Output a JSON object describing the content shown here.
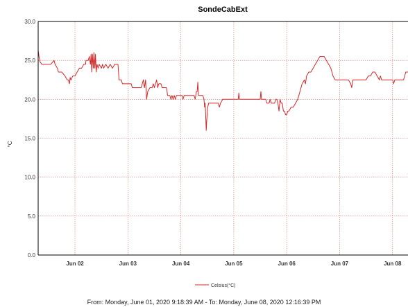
{
  "chart_data": {
    "type": "line",
    "title": "SondeCabExt",
    "ylabel": "°C",
    "xlabel": "",
    "ylim": [
      0,
      30
    ],
    "yticks": [
      "0.0",
      "5.0",
      "10.0",
      "15.0",
      "20.0",
      "25.0",
      "30.0"
    ],
    "xlim_hours": [
      7.31,
      175.0
    ],
    "xticks": [
      {
        "label": "Jun 02",
        "hour": 24
      },
      {
        "label": "Jun 03",
        "hour": 48
      },
      {
        "label": "Jun 04",
        "hour": 72
      },
      {
        "label": "Jun 05",
        "hour": 96
      },
      {
        "label": "Jun 06",
        "hour": 120
      },
      {
        "label": "Jun 07",
        "hour": 144
      },
      {
        "label": "Jun 08",
        "hour": 168
      }
    ],
    "grid": true,
    "legend_position": "bottom-center",
    "series": [
      {
        "name": "Celsius(°C)",
        "color": "#d62728",
        "points": [
          [
            7.3,
            26.3
          ],
          [
            7.7,
            25.5
          ],
          [
            8.2,
            24.8
          ],
          [
            9.0,
            24.5
          ],
          [
            11.0,
            24.5
          ],
          [
            12.0,
            24.5
          ],
          [
            13.0,
            24.5
          ],
          [
            14.5,
            25.0
          ],
          [
            15.0,
            24.5
          ],
          [
            16.0,
            24.0
          ],
          [
            16.5,
            23.5
          ],
          [
            18.0,
            23.5
          ],
          [
            19.5,
            23.0
          ],
          [
            20.5,
            22.5
          ],
          [
            21.0,
            22.5
          ],
          [
            21.5,
            22.0
          ],
          [
            21.8,
            22.8
          ],
          [
            22.2,
            22.5
          ],
          [
            23.0,
            23.0
          ],
          [
            24.0,
            23.0
          ],
          [
            25.0,
            23.5
          ],
          [
            26.0,
            24.0
          ],
          [
            27.0,
            24.0
          ],
          [
            28.0,
            24.5
          ],
          [
            28.8,
            24.5
          ],
          [
            29.0,
            25.0
          ],
          [
            30.0,
            25.0
          ],
          [
            30.5,
            25.5
          ],
          [
            31.0,
            24.5
          ],
          [
            31.3,
            25.8
          ],
          [
            31.6,
            23.5
          ],
          [
            31.9,
            25.8
          ],
          [
            32.3,
            24.0
          ],
          [
            32.6,
            26.0
          ],
          [
            33.0,
            24.0
          ],
          [
            33.3,
            25.8
          ],
          [
            33.6,
            23.5
          ],
          [
            34.0,
            24.5
          ],
          [
            34.5,
            24.0
          ],
          [
            35.0,
            24.5
          ],
          [
            36.0,
            24.0
          ],
          [
            36.5,
            24.5
          ],
          [
            37.0,
            24.0
          ],
          [
            38.0,
            24.5
          ],
          [
            39.0,
            24.0
          ],
          [
            40.0,
            24.5
          ],
          [
            41.0,
            24.0
          ],
          [
            42.0,
            24.5
          ],
          [
            43.5,
            24.5
          ],
          [
            44.0,
            22.5
          ],
          [
            45.0,
            22.5
          ],
          [
            45.5,
            22.0
          ],
          [
            48.0,
            22.0
          ],
          [
            49.5,
            22.0
          ],
          [
            50.0,
            21.5
          ],
          [
            53.0,
            21.5
          ],
          [
            54.0,
            21.5
          ],
          [
            54.5,
            22.0
          ],
          [
            55.0,
            22.5
          ],
          [
            55.5,
            21.5
          ],
          [
            56.0,
            22.5
          ],
          [
            56.5,
            20.0
          ],
          [
            57.0,
            21.0
          ],
          [
            58.0,
            21.5
          ],
          [
            59.0,
            21.5
          ],
          [
            59.5,
            22.0
          ],
          [
            60.0,
            21.5
          ],
          [
            61.0,
            22.5
          ],
          [
            61.5,
            21.5
          ],
          [
            62.0,
            22.0
          ],
          [
            63.0,
            22.0
          ],
          [
            63.5,
            21.5
          ],
          [
            65.5,
            21.5
          ],
          [
            66.0,
            20.5
          ],
          [
            67.0,
            20.5
          ],
          [
            67.5,
            20.0
          ],
          [
            68.0,
            20.5
          ],
          [
            68.5,
            20.0
          ],
          [
            69.0,
            20.5
          ],
          [
            69.5,
            20.0
          ],
          [
            70.0,
            20.5
          ],
          [
            71.0,
            20.5
          ],
          [
            72.0,
            20.5
          ],
          [
            72.5,
            20.5
          ],
          [
            73.0,
            20.0
          ],
          [
            73.5,
            20.5
          ],
          [
            74.0,
            20.5
          ],
          [
            75.0,
            20.5
          ],
          [
            76.0,
            20.5
          ],
          [
            77.0,
            20.5
          ],
          [
            78.0,
            20.5
          ],
          [
            78.5,
            20.0
          ],
          [
            79.0,
            21.0
          ],
          [
            79.4,
            21.0
          ],
          [
            79.7,
            22.2
          ],
          [
            80.0,
            20.5
          ],
          [
            80.5,
            20.5
          ],
          [
            81.0,
            20.5
          ],
          [
            82.0,
            20.5
          ],
          [
            82.5,
            20.0
          ],
          [
            82.8,
            19.0
          ],
          [
            83.0,
            19.5
          ],
          [
            83.2,
            18.5
          ],
          [
            83.5,
            16.0
          ],
          [
            83.8,
            17.5
          ],
          [
            84.2,
            19.0
          ],
          [
            84.6,
            19.5
          ],
          [
            85.0,
            19.5
          ],
          [
            86.0,
            19.5
          ],
          [
            87.0,
            19.5
          ],
          [
            88.0,
            19.5
          ],
          [
            89.0,
            19.5
          ],
          [
            89.5,
            19.0
          ],
          [
            90.0,
            19.5
          ],
          [
            91.0,
            20.0
          ],
          [
            92.0,
            20.0
          ],
          [
            93.0,
            20.0
          ],
          [
            94.0,
            20.0
          ],
          [
            95.0,
            20.0
          ],
          [
            96.0,
            20.0
          ],
          [
            97.0,
            20.0
          ],
          [
            98.0,
            20.0
          ],
          [
            98.3,
            20.8
          ],
          [
            98.6,
            20.0
          ],
          [
            99.0,
            20.0
          ],
          [
            100.0,
            20.0
          ],
          [
            101.0,
            20.0
          ],
          [
            102.0,
            20.0
          ],
          [
            103.0,
            20.0
          ],
          [
            104.0,
            20.0
          ],
          [
            105.0,
            20.0
          ],
          [
            106.0,
            20.0
          ],
          [
            107.0,
            20.0
          ],
          [
            108.0,
            20.0
          ],
          [
            108.3,
            21.0
          ],
          [
            108.6,
            20.0
          ],
          [
            109.0,
            20.0
          ],
          [
            110.0,
            20.0
          ],
          [
            110.5,
            20.0
          ],
          [
            111.0,
            19.5
          ],
          [
            112.0,
            19.5
          ],
          [
            112.5,
            20.0
          ],
          [
            113.0,
            19.5
          ],
          [
            114.0,
            19.5
          ],
          [
            114.5,
            19.5
          ],
          [
            115.0,
            20.0
          ],
          [
            115.5,
            20.0
          ],
          [
            116.0,
            19.5
          ],
          [
            116.5,
            18.5
          ],
          [
            117.0,
            20.0
          ],
          [
            117.5,
            19.5
          ],
          [
            118.0,
            19.5
          ],
          [
            118.5,
            18.5
          ],
          [
            119.0,
            18.5
          ],
          [
            119.5,
            18.0
          ],
          [
            120.0,
            18.0
          ],
          [
            120.5,
            18.5
          ],
          [
            121.0,
            18.5
          ],
          [
            122.0,
            19.0
          ],
          [
            123.0,
            19.0
          ],
          [
            124.0,
            19.5
          ],
          [
            125.0,
            20.0
          ],
          [
            126.0,
            21.0
          ],
          [
            127.0,
            22.0
          ],
          [
            128.0,
            22.5
          ],
          [
            128.5,
            22.0
          ],
          [
            129.0,
            23.0
          ],
          [
            130.0,
            23.5
          ],
          [
            131.0,
            23.5
          ],
          [
            132.0,
            24.0
          ],
          [
            133.0,
            24.5
          ],
          [
            134.0,
            25.0
          ],
          [
            135.0,
            25.5
          ],
          [
            136.0,
            25.5
          ],
          [
            137.0,
            25.5
          ],
          [
            138.0,
            25.0
          ],
          [
            139.0,
            24.5
          ],
          [
            140.0,
            24.0
          ],
          [
            141.0,
            23.0
          ],
          [
            142.0,
            22.5
          ],
          [
            143.0,
            22.5
          ],
          [
            144.0,
            22.5
          ],
          [
            145.0,
            22.5
          ],
          [
            146.0,
            22.5
          ],
          [
            147.0,
            22.5
          ],
          [
            148.0,
            22.5
          ],
          [
            149.0,
            22.0
          ],
          [
            149.5,
            21.5
          ],
          [
            150.0,
            22.5
          ],
          [
            151.0,
            22.5
          ],
          [
            152.0,
            22.5
          ],
          [
            153.0,
            22.5
          ],
          [
            154.0,
            22.5
          ],
          [
            155.0,
            22.5
          ],
          [
            156.0,
            22.5
          ],
          [
            157.0,
            23.0
          ],
          [
            158.0,
            23.0
          ],
          [
            159.0,
            23.5
          ],
          [
            160.0,
            23.5
          ],
          [
            161.0,
            23.0
          ],
          [
            162.0,
            22.5
          ],
          [
            162.5,
            23.0
          ],
          [
            163.0,
            22.5
          ],
          [
            164.0,
            22.5
          ],
          [
            165.0,
            22.5
          ],
          [
            166.0,
            22.5
          ],
          [
            167.0,
            22.5
          ],
          [
            168.0,
            22.5
          ],
          [
            168.5,
            22.0
          ],
          [
            169.0,
            22.5
          ],
          [
            170.0,
            22.5
          ],
          [
            171.0,
            22.5
          ],
          [
            172.0,
            22.5
          ],
          [
            173.0,
            22.5
          ],
          [
            174.0,
            23.5
          ],
          [
            175.0,
            23.5
          ]
        ]
      }
    ]
  },
  "footer_text": "From: Monday, June 01, 2020 9:18:39 AM  -  To: Monday, June 08, 2020 12:16:39 PM"
}
